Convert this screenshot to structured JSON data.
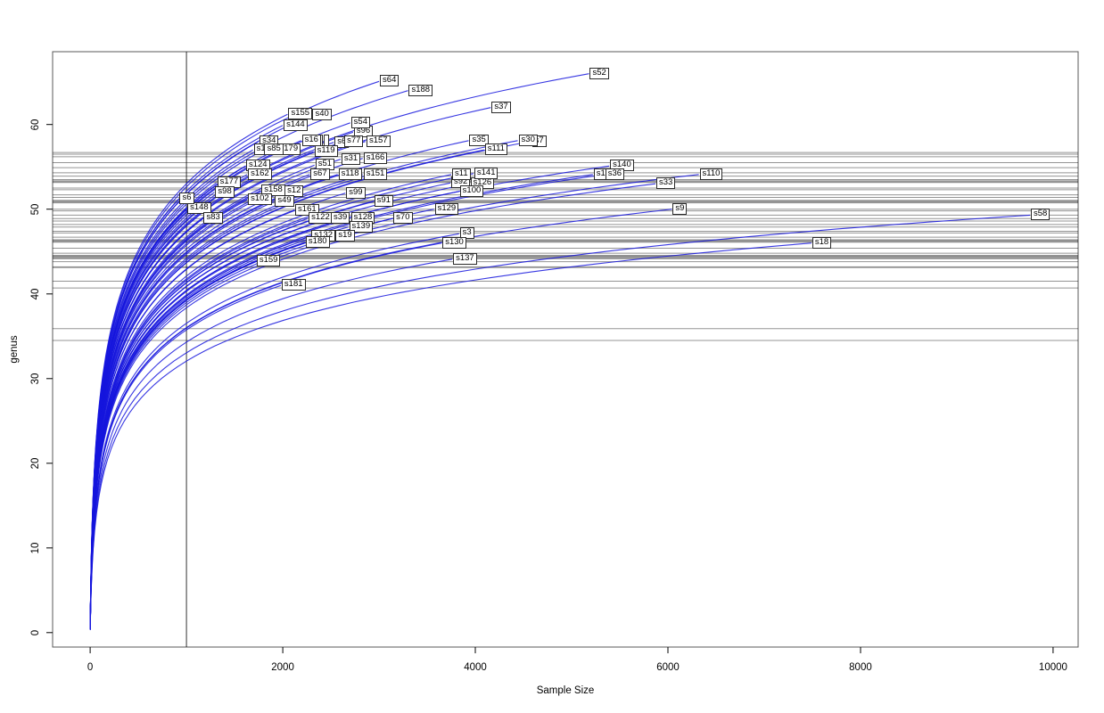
{
  "figure": {
    "background": "#ffffff",
    "curve_color": "#1515dd",
    "hline_color": "#000000",
    "vline_color": "#000000",
    "box_color": "#000000",
    "label_box_bg": "#ffffff",
    "label_box_border": "#2a2a2a"
  },
  "chart_data": {
    "type": "line",
    "title": "",
    "xlabel": "Sample Size",
    "ylabel": "genus",
    "x_ticks": [
      0,
      2000,
      4000,
      6000,
      8000,
      10000
    ],
    "y_ticks": [
      0,
      10,
      20,
      30,
      40,
      50,
      60
    ],
    "xlim": [
      -390,
      10260
    ],
    "ylim": [
      -1.7,
      68.6
    ],
    "grid": false,
    "legend": "none",
    "vline_x": 1000,
    "hlines_y": [
      56.7,
      56.5,
      56.2,
      55.5,
      54.9,
      54.3,
      53.9,
      53.5,
      53.35,
      53.25,
      53.15,
      52.5,
      52.3,
      51.7,
      51.4,
      51.05,
      50.95,
      50.85,
      50.75,
      50.0,
      49.8,
      49.3,
      48.9,
      48.6,
      48.2,
      47.9,
      47.4,
      47.2,
      46.7,
      46.4,
      46.3,
      46.2,
      46.1,
      45.4,
      44.8,
      44.55,
      44.45,
      44.35,
      44.25,
      44.15,
      43.8,
      43.2,
      43.1,
      41.5,
      40.7,
      35.9,
      34.5
    ],
    "series_note": "rarefaction curves; each series rises from (0,~1) to its endpoint where its boxed label sits",
    "series": [
      {
        "name": "s52",
        "x_end": 5180,
        "y_end": 66.0
      },
      {
        "name": "s64",
        "x_end": 3000,
        "y_end": 65.1
      },
      {
        "name": "s188",
        "x_end": 3300,
        "y_end": 64.0
      },
      {
        "name": "s37",
        "x_end": 4160,
        "y_end": 62.0
      },
      {
        "name": "s40",
        "x_end": 2300,
        "y_end": 61.1
      },
      {
        "name": "s155",
        "x_end": 2050,
        "y_end": 61.2
      },
      {
        "name": "s144",
        "x_end": 2000,
        "y_end": 59.9
      },
      {
        "name": "s96",
        "x_end": 2730,
        "y_end": 59.1
      },
      {
        "name": "s54",
        "x_end": 2700,
        "y_end": 60.2
      },
      {
        "name": "s34",
        "x_end": 1750,
        "y_end": 58.0
      },
      {
        "name": "s16",
        "x_end": 2190,
        "y_end": 58.1
      },
      {
        "name": "s6",
        "x_end": 2530,
        "y_end": 57.9
      },
      {
        "name": "s77",
        "x_end": 2630,
        "y_end": 58.0
      },
      {
        "name": "s157",
        "x_end": 2860,
        "y_end": 58.0
      },
      {
        "name": "s35",
        "x_end": 3930,
        "y_end": 58.1
      },
      {
        "name": "s7",
        "x_end": 4580,
        "y_end": 58.0
      },
      {
        "name": "s30",
        "x_end": 4440,
        "y_end": 58.1
      },
      {
        "name": "s111",
        "x_end": 4090,
        "y_end": 57.0
      },
      {
        "name": "s1",
        "x_end": 1690,
        "y_end": 57.0
      },
      {
        "name": "s179",
        "x_end": 1930,
        "y_end": 57.0
      },
      {
        "name": "s85",
        "x_end": 1800,
        "y_end": 57.0
      },
      {
        "name": "s119",
        "x_end": 2320,
        "y_end": 56.8
      },
      {
        "name": "s31",
        "x_end": 2600,
        "y_end": 55.9
      },
      {
        "name": "s166",
        "x_end": 2830,
        "y_end": 56.0
      },
      {
        "name": "s124",
        "x_end": 1610,
        "y_end": 55.1
      },
      {
        "name": "s51",
        "x_end": 2330,
        "y_end": 55.2
      },
      {
        "name": "s140",
        "x_end": 5390,
        "y_end": 55.1
      },
      {
        "name": "s162",
        "x_end": 1630,
        "y_end": 54.1
      },
      {
        "name": "s67",
        "x_end": 2280,
        "y_end": 54.1
      },
      {
        "name": "s118",
        "x_end": 2570,
        "y_end": 54.1
      },
      {
        "name": "s151",
        "x_end": 2830,
        "y_end": 54.1
      },
      {
        "name": "s92",
        "x_end": 3740,
        "y_end": 53.1
      },
      {
        "name": "s126",
        "x_end": 3940,
        "y_end": 53.0
      },
      {
        "name": "s11",
        "x_end": 3750,
        "y_end": 54.1
      },
      {
        "name": "s141",
        "x_end": 3980,
        "y_end": 54.2
      },
      {
        "name": "s1",
        "x_end": 5220,
        "y_end": 54.1
      },
      {
        "name": "s36",
        "x_end": 5340,
        "y_end": 54.1
      },
      {
        "name": "s110",
        "x_end": 6320,
        "y_end": 54.1
      },
      {
        "name": "s177",
        "x_end": 1310,
        "y_end": 53.1
      },
      {
        "name": "s33",
        "x_end": 5870,
        "y_end": 53.0
      },
      {
        "name": "s98",
        "x_end": 1290,
        "y_end": 52.0
      },
      {
        "name": "s158",
        "x_end": 1770,
        "y_end": 52.2
      },
      {
        "name": "s12",
        "x_end": 2010,
        "y_end": 52.1
      },
      {
        "name": "s99",
        "x_end": 2650,
        "y_end": 51.9
      },
      {
        "name": "s100",
        "x_end": 3830,
        "y_end": 52.1
      },
      {
        "name": "s148",
        "x_end": 1000,
        "y_end": 50.1
      },
      {
        "name": "s6",
        "x_end": 920,
        "y_end": 51.2
      },
      {
        "name": "s102",
        "x_end": 1630,
        "y_end": 51.1
      },
      {
        "name": "s49",
        "x_end": 1910,
        "y_end": 50.9
      },
      {
        "name": "s91",
        "x_end": 2940,
        "y_end": 50.9
      },
      {
        "name": "s129",
        "x_end": 3570,
        "y_end": 50.0
      },
      {
        "name": "s9",
        "x_end": 6040,
        "y_end": 50.0
      },
      {
        "name": "s58",
        "x_end": 9760,
        "y_end": 49.3
      },
      {
        "name": "s161",
        "x_end": 2120,
        "y_end": 49.9
      },
      {
        "name": "s83",
        "x_end": 1170,
        "y_end": 48.9
      },
      {
        "name": "s122",
        "x_end": 2260,
        "y_end": 48.9
      },
      {
        "name": "s39",
        "x_end": 2490,
        "y_end": 48.9
      },
      {
        "name": "s128",
        "x_end": 2700,
        "y_end": 48.9
      },
      {
        "name": "s70",
        "x_end": 3140,
        "y_end": 48.9
      },
      {
        "name": "s139",
        "x_end": 2680,
        "y_end": 47.9
      },
      {
        "name": "s132",
        "x_end": 2290,
        "y_end": 46.8
      },
      {
        "name": "s19",
        "x_end": 2540,
        "y_end": 46.8
      },
      {
        "name": "s3",
        "x_end": 3830,
        "y_end": 47.1
      },
      {
        "name": "s180",
        "x_end": 2230,
        "y_end": 46.1
      },
      {
        "name": "s130",
        "x_end": 3650,
        "y_end": 46.0
      },
      {
        "name": "s18",
        "x_end": 7490,
        "y_end": 46.0
      },
      {
        "name": "s159",
        "x_end": 1720,
        "y_end": 43.9
      },
      {
        "name": "s137",
        "x_end": 3760,
        "y_end": 44.1
      },
      {
        "name": "s181",
        "x_end": 1980,
        "y_end": 41.0
      }
    ],
    "hidden_label_edges": [
      {
        "x": 2360,
        "y": 58.1
      },
      {
        "x": 2425,
        "y": 58.1
      }
    ]
  }
}
